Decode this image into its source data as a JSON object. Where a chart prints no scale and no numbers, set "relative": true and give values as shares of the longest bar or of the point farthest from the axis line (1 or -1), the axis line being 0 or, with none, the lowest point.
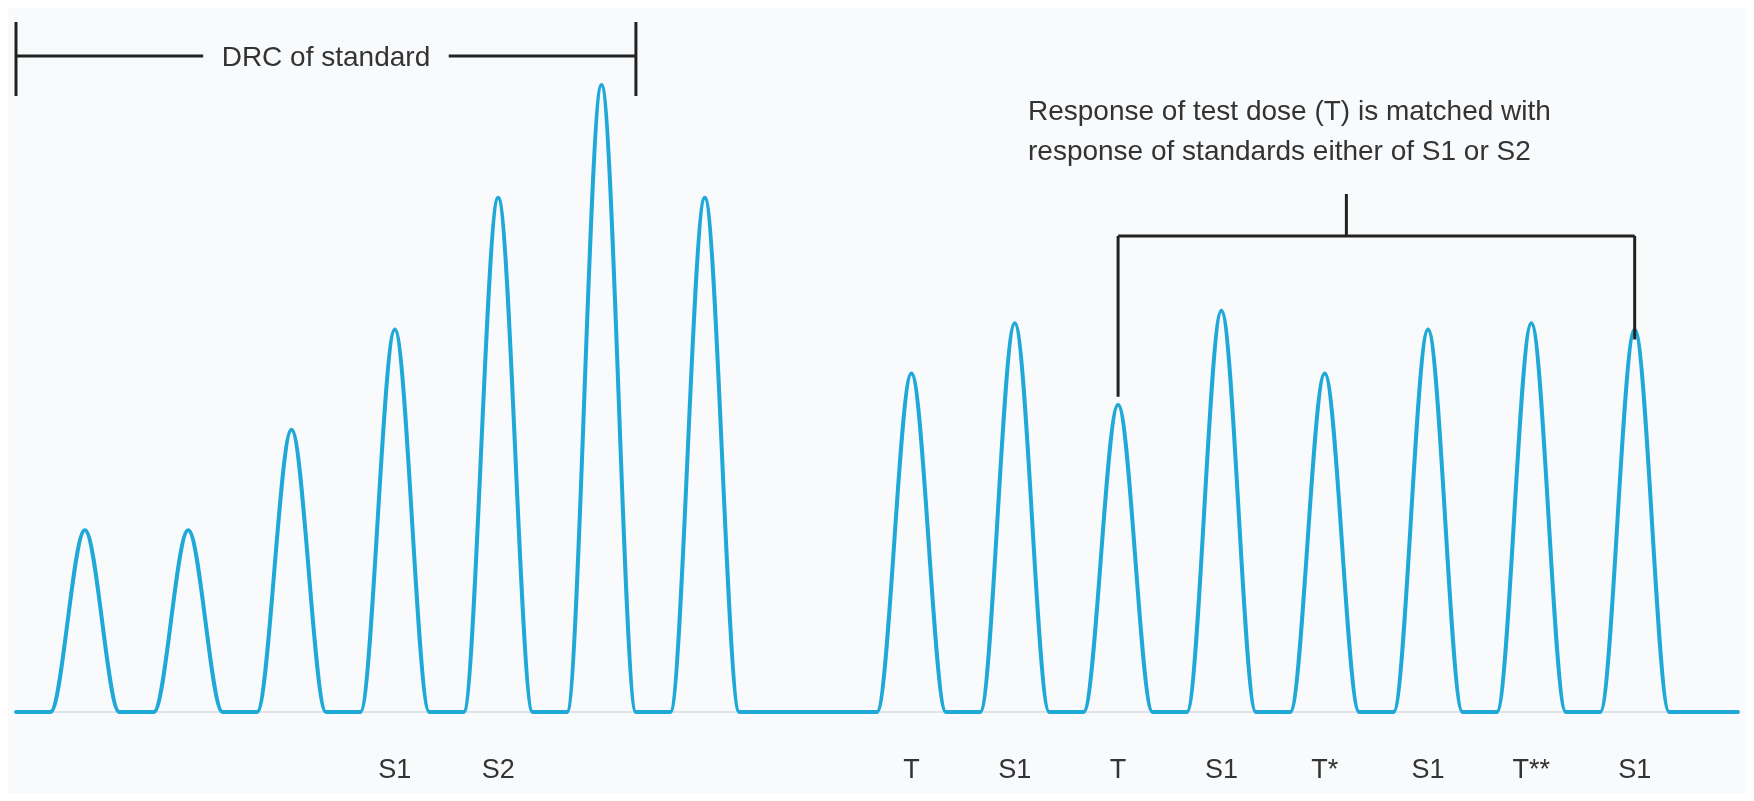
{
  "chart_data": {
    "type": "line",
    "relative": true,
    "categories": [
      null,
      null,
      null,
      null,
      null,
      null,
      null,
      null,
      null,
      null,
      null,
      "S1",
      null,
      null,
      "S2",
      null,
      null,
      null,
      null,
      null,
      null,
      null,
      null,
      null,
      null,
      null,
      "T",
      null,
      null,
      "S1",
      null,
      null,
      "T",
      null,
      null,
      "S1",
      null,
      null,
      "T*",
      null,
      null,
      "S1",
      null,
      null,
      "T**",
      null,
      null,
      "S1",
      null,
      null,
      null
    ],
    "series": [
      {
        "color": "#1fa8d8",
        "values": [
          0,
          0,
          0.29,
          0,
          0,
          0.29,
          0,
          0,
          0.45,
          0,
          0,
          0.61,
          0,
          0,
          0.82,
          0,
          0,
          1,
          0,
          0,
          0.82,
          0,
          0,
          0,
          0,
          0,
          0.54,
          0,
          0,
          0.62,
          0,
          0,
          0.49,
          0,
          0,
          0.64,
          0,
          0,
          0.54,
          0,
          0,
          0.61,
          0,
          0,
          0.62,
          0,
          0,
          0.61,
          0,
          0,
          0
        ]
      }
    ],
    "annotations": [
      "DRC of standard",
      "Response of test dose (T) is matched with response of standards either of S1 or S2"
    ]
  }
}
